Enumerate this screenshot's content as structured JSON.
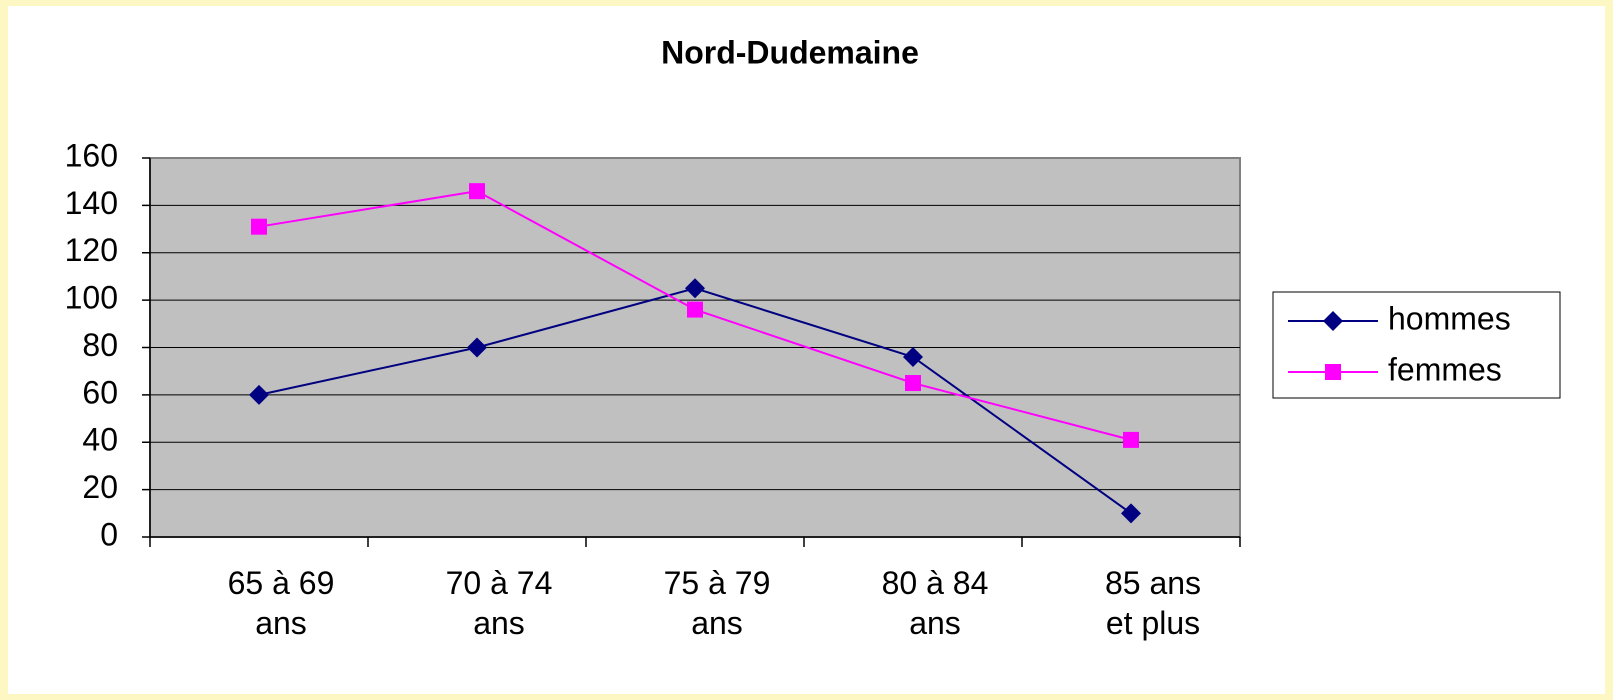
{
  "chart_data": {
    "type": "line",
    "title": "Nord-Dudemaine",
    "categories": [
      "65 à 69 ans",
      "70 à 74 ans",
      "75 à 79 ans",
      "80 à 84 ans",
      "85 ans et plus"
    ],
    "series": [
      {
        "name": "hommes",
        "color": "#000080",
        "marker": "diamond",
        "values": [
          60,
          80,
          105,
          76,
          10
        ]
      },
      {
        "name": "femmes",
        "color": "#ff00ff",
        "marker": "square",
        "values": [
          131,
          146,
          96,
          65,
          41
        ]
      }
    ],
    "ylim": [
      0,
      160
    ],
    "yticks": [
      0,
      20,
      40,
      60,
      80,
      100,
      120,
      140,
      160
    ],
    "grid": true,
    "legend": "right",
    "plot_background": "#c0c0c0"
  }
}
